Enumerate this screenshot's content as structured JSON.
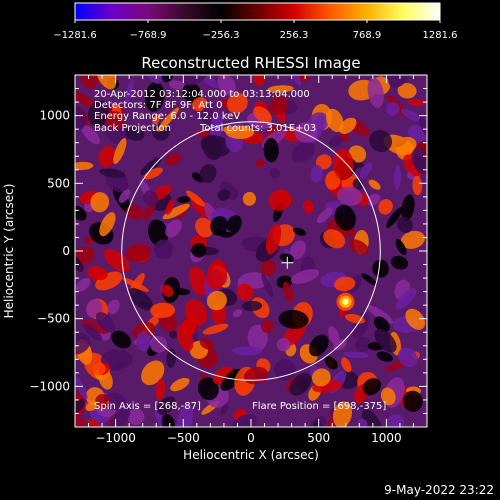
{
  "chart_data": {
    "type": "heatmap",
    "title": "Reconstructed RHESSI Image",
    "xlabel": "Heliocentric X (arcsec)",
    "ylabel": "Heliocentric Y (arcsec)",
    "xlim": [
      -1300,
      1300
    ],
    "ylim": [
      -1300,
      1300
    ],
    "x_ticks": [
      -1000,
      -500,
      0,
      500,
      1000
    ],
    "x_tick_labels": [
      "−1000",
      "−500",
      "0",
      "500",
      "1000"
    ],
    "y_ticks": [
      -1000,
      -500,
      0,
      500,
      1000
    ],
    "y_tick_labels": [
      "−1000",
      "−500",
      "0",
      "500",
      "1000"
    ],
    "colorbar": {
      "range": [
        -1281.6,
        1281.6
      ],
      "tick_labels": [
        "−1281.6",
        "−768.9",
        "−256.3",
        "256.3",
        "768.9",
        "1281.6"
      ],
      "stops": [
        "#0000ff",
        "#6a00c8",
        "#7a0a7a",
        "#3a0a2a",
        "#000000",
        "#6a0000",
        "#d40000",
        "#ff5a00",
        "#ffb000",
        "#ffff60",
        "#ffffff"
      ]
    },
    "annotations": [
      "20-Apr-2012 03:12:04.000 to 03:13:04.000",
      "Detectors: 7F 8F 9F, Att 0",
      "Energy Range: 6.0 - 12.0 keV",
      "Back Projection",
      "Total counts: 3.01E+03"
    ],
    "spin_axis": "Spin Axis = [268,-87]",
    "flare_position": "Flare Position = [698,-375]",
    "solar_limb_radius": 955,
    "map_center": [
      268,
      -87
    ],
    "bright_source": [
      698,
      -375
    ]
  },
  "footer": {
    "timestamp": "9-May-2022 23:22"
  }
}
